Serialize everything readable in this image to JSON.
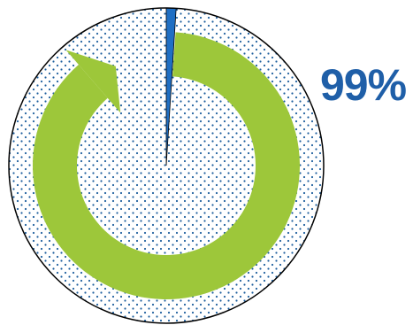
{
  "chart_data": {
    "type": "pie",
    "categories": [
      "",
      ""
    ],
    "values": [
      99,
      1
    ],
    "value_label": "99%",
    "colors": {
      "main_fill_dots": "#1f5f9e",
      "small_slice": "#1f6fc4",
      "cycle_arrow": "#9dc73a",
      "label": "#1f5fa8",
      "outline": "#000000"
    },
    "icons": [
      "cycle-arrow-icon"
    ]
  }
}
